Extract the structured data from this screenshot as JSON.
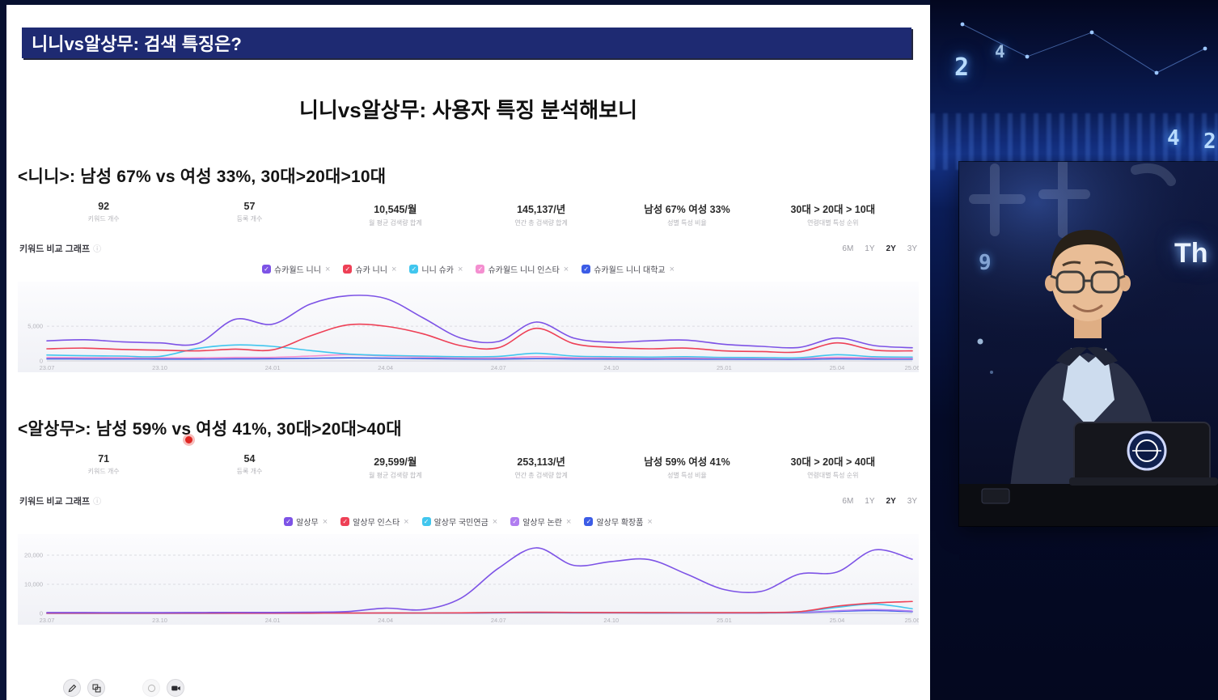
{
  "icons": {
    "check": "✓",
    "close": "×",
    "info": "ⓘ"
  },
  "colors": {
    "accent_navy": "#1e2a72",
    "pointer_red": "#e02723"
  },
  "slide": {
    "title_bar": "니니vs알상무: 검색 특징은?",
    "heading": "니니vs알상무: 사용자 특징 분석해보니",
    "sections": [
      {
        "title": "<니니>: 남성 67% vs 여성 33%, 30대>20대>10대",
        "stats": [
          {
            "value": "92",
            "label": "키워드 개수"
          },
          {
            "value": "57",
            "label": "등록 개수"
          },
          {
            "value": "10,545/월",
            "label": "월 평균 검색량 합계"
          },
          {
            "value": "145,137/년",
            "label": "연간 총 검색량 합계"
          },
          {
            "value": "남성 67%  여성 33%",
            "label": "성별 특성 비율"
          },
          {
            "value": "30대 > 20대 > 10대",
            "label": "연령대별 특성 순위"
          }
        ],
        "chart_label": "키워드 비교 그래프",
        "ranges": [
          "6M",
          "1Y",
          "2Y",
          "3Y"
        ],
        "selected_range": "2Y"
      },
      {
        "title": "<알상무>: 남성 59% vs 여성 41%, 30대>20대>40대",
        "stats": [
          {
            "value": "71",
            "label": "키워드 개수"
          },
          {
            "value": "54",
            "label": "등록 개수"
          },
          {
            "value": "29,599/월",
            "label": "월 평균 검색량 합계"
          },
          {
            "value": "253,113/년",
            "label": "연간 총 검색량 합계"
          },
          {
            "value": "남성 59%  여성 41%",
            "label": "성별 특성 비율"
          },
          {
            "value": "30대 > 20대 > 40대",
            "label": "연령대별 특성 순위"
          }
        ],
        "chart_label": "키워드 비교 그래프",
        "ranges": [
          "6M",
          "1Y",
          "2Y",
          "3Y"
        ],
        "selected_range": "2Y"
      }
    ]
  },
  "chart_data": [
    {
      "type": "line",
      "title": "키워드 비교 그래프 (니니)",
      "x": [
        "23.07",
        "23.08",
        "23.09",
        "23.10",
        "23.11",
        "23.12",
        "24.01",
        "24.02",
        "24.03",
        "24.04",
        "24.05",
        "24.06",
        "24.07",
        "24.08",
        "24.09",
        "24.10",
        "24.11",
        "24.12",
        "25.01",
        "25.02",
        "25.03",
        "25.04",
        "25.05",
        "25.06"
      ],
      "xticks": [
        "23.07",
        "23.10",
        "24.01",
        "24.04",
        "24.07",
        "24.10",
        "25.01",
        "25.04",
        "25.06"
      ],
      "yticks": [
        0,
        5000
      ],
      "ylim": [
        0,
        10500
      ],
      "grid": "horizontal-dashed",
      "legend_position": "top-center",
      "series": [
        {
          "name": "슈카월드 니니",
          "color": "#7d53e6",
          "values": [
            2900,
            3050,
            2750,
            2600,
            2500,
            6000,
            5300,
            8200,
            9400,
            9000,
            6200,
            3300,
            2800,
            5600,
            3300,
            2700,
            2900,
            3000,
            2400,
            2100,
            1950,
            3300,
            2200,
            1900
          ]
        },
        {
          "name": "슈카 니니",
          "color": "#ee4056",
          "values": [
            1750,
            1850,
            1650,
            1550,
            1450,
            1700,
            1600,
            3600,
            5200,
            5000,
            3900,
            2200,
            1900,
            4700,
            2500,
            1950,
            1750,
            1850,
            1450,
            1350,
            1300,
            2600,
            1550,
            1450
          ]
        },
        {
          "name": "니니 슈카",
          "color": "#41c6ee",
          "values": [
            850,
            750,
            700,
            650,
            1800,
            2300,
            2100,
            1500,
            1000,
            800,
            700,
            600,
            650,
            1100,
            700,
            600,
            550,
            600,
            500,
            480,
            460,
            900,
            600,
            550
          ]
        },
        {
          "name": "슈카월드 니니 인스타",
          "color": "#f48fd0",
          "values": [
            500,
            480,
            460,
            450,
            440,
            500,
            520,
            700,
            900,
            700,
            550,
            450,
            430,
            600,
            480,
            440,
            430,
            440,
            400,
            380,
            370,
            520,
            420,
            400
          ]
        },
        {
          "name": "슈카월드 니니 대학교",
          "color": "#3c5ce6",
          "values": [
            300,
            290,
            280,
            275,
            270,
            300,
            310,
            380,
            450,
            400,
            330,
            280,
            270,
            330,
            290,
            270,
            260,
            270,
            250,
            240,
            235,
            300,
            260,
            250
          ]
        }
      ]
    },
    {
      "type": "line",
      "title": "키워드 비교 그래프 (알상무)",
      "x": [
        "23.07",
        "23.08",
        "23.09",
        "23.10",
        "23.11",
        "23.12",
        "24.01",
        "24.02",
        "24.03",
        "24.04",
        "24.05",
        "24.06",
        "24.07",
        "24.08",
        "24.09",
        "24.10",
        "24.11",
        "24.12",
        "25.01",
        "25.02",
        "25.03",
        "25.04",
        "25.05",
        "25.06"
      ],
      "xticks": [
        "23.07",
        "23.10",
        "24.01",
        "24.04",
        "24.07",
        "24.10",
        "25.01",
        "25.04",
        "25.06"
      ],
      "yticks": [
        0,
        10000,
        20000
      ],
      "ylim": [
        0,
        25000
      ],
      "grid": "horizontal-dashed",
      "legend_position": "top-center",
      "series": [
        {
          "name": "알상무",
          "color": "#7d53e6",
          "values": [
            300,
            300,
            260,
            260,
            300,
            350,
            320,
            420,
            650,
            1800,
            1300,
            5200,
            15500,
            22500,
            16500,
            17800,
            18500,
            13500,
            8200,
            7600,
            13500,
            14200,
            21800,
            18600
          ]
        },
        {
          "name": "알상무 인스타",
          "color": "#ee4056",
          "values": [
            80,
            80,
            80,
            80,
            80,
            90,
            90,
            100,
            120,
            150,
            140,
            200,
            350,
            400,
            350,
            300,
            300,
            280,
            260,
            300,
            600,
            2500,
            3600,
            4100
          ]
        },
        {
          "name": "알상무 국민연금",
          "color": "#41c6ee",
          "values": [
            60,
            60,
            60,
            60,
            60,
            70,
            70,
            80,
            100,
            120,
            110,
            160,
            280,
            320,
            280,
            250,
            240,
            230,
            220,
            250,
            500,
            2100,
            3200,
            1600
          ]
        },
        {
          "name": "알상무 논란",
          "color": "#b07df0",
          "values": [
            50,
            50,
            50,
            50,
            50,
            60,
            60,
            70,
            90,
            110,
            100,
            140,
            250,
            280,
            250,
            220,
            210,
            200,
            190,
            210,
            350,
            900,
            1300,
            800
          ]
        },
        {
          "name": "알상무 확장품",
          "color": "#3c5ce6",
          "values": [
            40,
            40,
            40,
            40,
            40,
            50,
            50,
            60,
            80,
            100,
            90,
            120,
            200,
            230,
            200,
            180,
            170,
            160,
            150,
            170,
            280,
            700,
            1000,
            600
          ]
        }
      ]
    }
  ],
  "video_panel": {
    "overlay_numbers": [
      "2",
      "4",
      "4",
      "2",
      "9"
    ],
    "overlay_text": "Th"
  },
  "toolbar": {
    "buttons": [
      "pen-icon",
      "shapes-icon",
      "eraser-icon",
      "camera-icon"
    ]
  }
}
